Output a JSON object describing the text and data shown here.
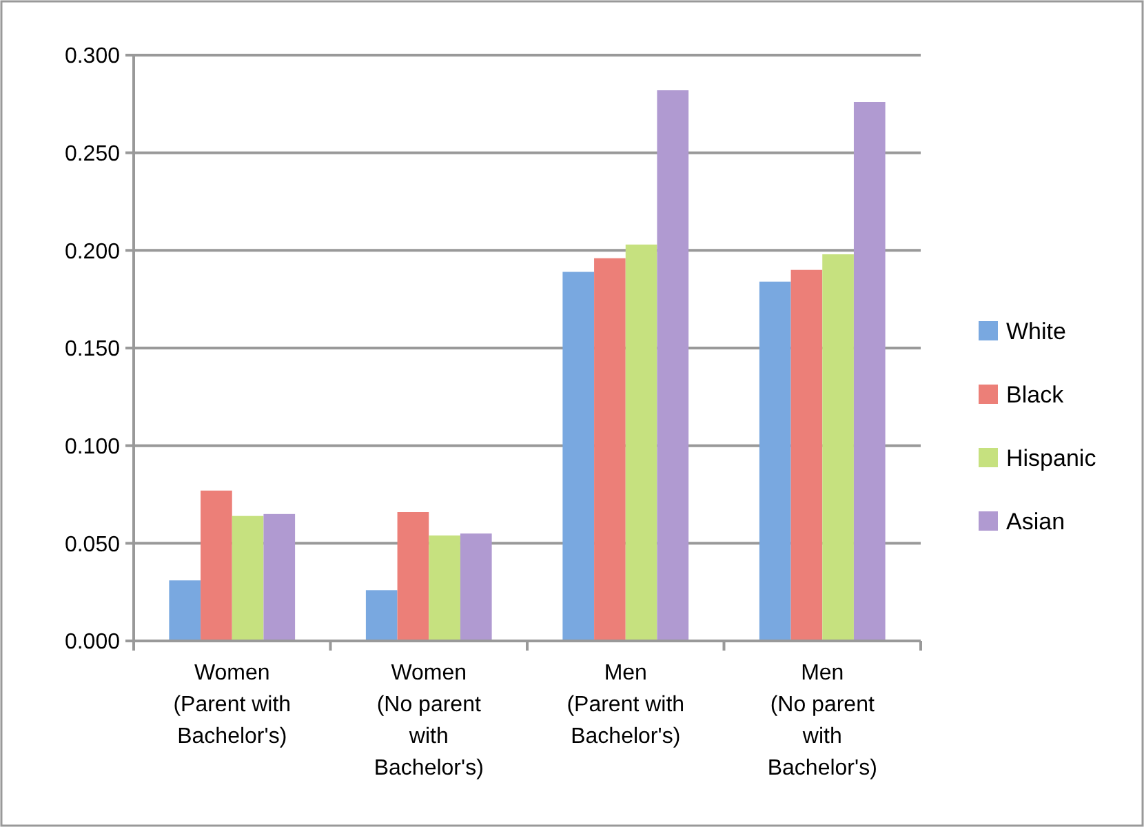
{
  "chart_data": {
    "type": "bar",
    "categories": [
      "Women (Parent with Bachelor's)",
      "Women (No parent with Bachelor's)",
      "Men (Parent with Bachelor's)",
      "Men (No parent with Bachelor's)"
    ],
    "series": [
      {
        "name": "White",
        "color": "#79a8e0",
        "values": [
          0.031,
          0.026,
          0.189,
          0.184
        ]
      },
      {
        "name": "Black",
        "color": "#ec7f78",
        "values": [
          0.077,
          0.066,
          0.196,
          0.19
        ]
      },
      {
        "name": "Hispanic",
        "color": "#c6e17f",
        "values": [
          0.064,
          0.054,
          0.203,
          0.198
        ]
      },
      {
        "name": "Asian",
        "color": "#b09ad1",
        "values": [
          0.065,
          0.055,
          0.282,
          0.276
        ]
      }
    ],
    "ylim": [
      0,
      0.3
    ],
    "yticks": [
      {
        "value": 0,
        "label": "0.000"
      },
      {
        "value": 0.05,
        "label": "0.050"
      },
      {
        "value": 0.1,
        "label": "0.100"
      },
      {
        "value": 0.15,
        "label": "0.150"
      },
      {
        "value": 0.2,
        "label": "0.200"
      },
      {
        "value": 0.25,
        "label": "0.250"
      },
      {
        "value": 0.3,
        "label": "0.300"
      }
    ],
    "grid": "y",
    "legend": "right"
  }
}
